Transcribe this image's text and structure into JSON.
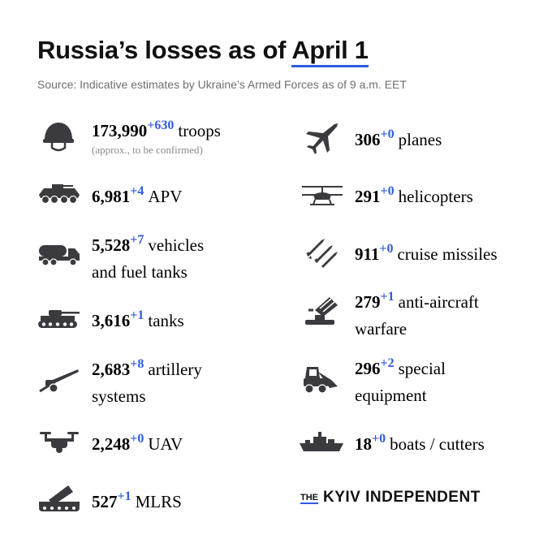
{
  "header": {
    "title_prefix": "Russia’s losses as of",
    "title_date": "April 1",
    "source": "Source: Indicative estimates by Ukraine’s Armed Forces as of 9 a.m. EET"
  },
  "items": {
    "troops": {
      "value": "173,990",
      "delta": "+630",
      "label": "troops",
      "note": "(approx., to be confirmed)",
      "icon": "helmet-icon"
    },
    "apv": {
      "value": "6,981",
      "delta": "+4",
      "label": "APV",
      "icon": "apv-icon"
    },
    "vehicles": {
      "value": "5,528",
      "delta": "+7",
      "label": "vehicles",
      "label2": "and fuel tanks",
      "icon": "fuel-truck-icon"
    },
    "tanks": {
      "value": "3,616",
      "delta": "+1",
      "label": "tanks",
      "icon": "tank-icon"
    },
    "artillery": {
      "value": "2,683",
      "delta": "+8",
      "label": "artillery",
      "label2": "systems",
      "icon": "artillery-icon"
    },
    "uav": {
      "value": "2,248",
      "delta": "+0",
      "label": "UAV",
      "icon": "drone-icon"
    },
    "mlrs": {
      "value": "527",
      "delta": "+1",
      "label": "MLRS",
      "icon": "mlrs-icon"
    },
    "planes": {
      "value": "306",
      "delta": "+0",
      "label": "planes",
      "icon": "jet-icon"
    },
    "helicopters": {
      "value": "291",
      "delta": "+0",
      "label": "helicopters",
      "icon": "helicopter-icon"
    },
    "missiles": {
      "value": "911",
      "delta": "+0",
      "label": "cruise missiles",
      "icon": "missiles-icon"
    },
    "antiair": {
      "value": "279",
      "delta": "+1",
      "label": "anti-aircraft",
      "label2": "warfare",
      "icon": "anti-aircraft-icon"
    },
    "special": {
      "value": "296",
      "delta": "+2",
      "label": "special",
      "label2": "equipment",
      "icon": "loader-icon"
    },
    "boats": {
      "value": "18",
      "delta": "+0",
      "label": "boats / cutters",
      "icon": "ship-icon"
    }
  },
  "brand": {
    "the": "THE",
    "name": "KYIV INDEPENDENT"
  },
  "colors": {
    "accent": "#2f5be0",
    "text": "#111111",
    "muted": "#6f6f6f",
    "icon": "#3a3a3f"
  }
}
